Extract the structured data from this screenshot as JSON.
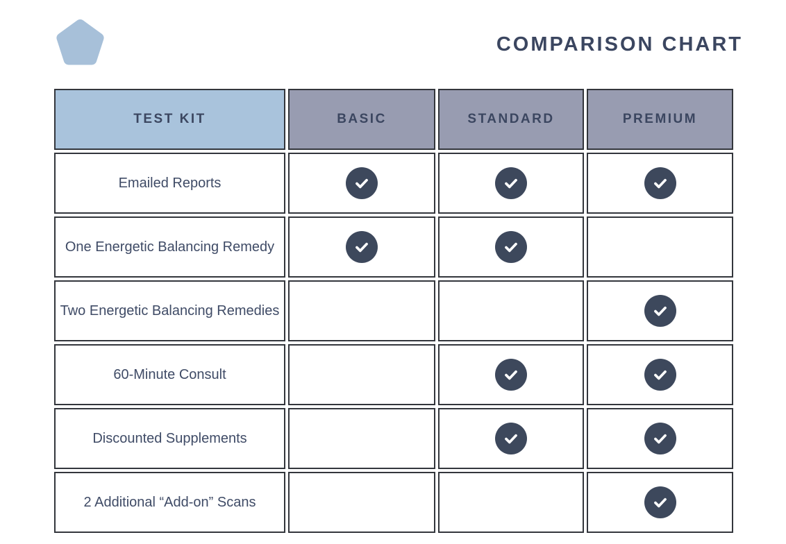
{
  "page": {
    "title": "COMPARISON CHART"
  },
  "logo": {
    "icon": "pentagon-icon",
    "color": "#a7c0d9"
  },
  "chart_data": {
    "type": "table",
    "title": "COMPARISON CHART",
    "columns": [
      "TEST KIT",
      "BASIC",
      "STANDARD",
      "PREMIUM"
    ],
    "rows": [
      {
        "feature": "Emailed Reports",
        "checks": [
          true,
          true,
          true
        ]
      },
      {
        "feature": "One Energetic Balancing Remedy",
        "checks": [
          true,
          true,
          false
        ]
      },
      {
        "feature": "Two Energetic Balancing Remedies",
        "checks": [
          false,
          false,
          true
        ]
      },
      {
        "feature": "60-Minute Consult",
        "checks": [
          false,
          true,
          true
        ]
      },
      {
        "feature": "Discounted Supplements",
        "checks": [
          false,
          true,
          true
        ]
      },
      {
        "feature": "2 Additional “Add-on” Scans",
        "checks": [
          false,
          false,
          true
        ]
      }
    ]
  },
  "colors": {
    "feature_header_bg": "#a9c3dc",
    "tier_header_bg": "#989cb1",
    "check_circle": "#3d485c",
    "text": "#3f4b66",
    "title": "#3b4660",
    "border": "#33363c",
    "logo": "#a7c0d9",
    "check_mark": "#ffffff"
  }
}
